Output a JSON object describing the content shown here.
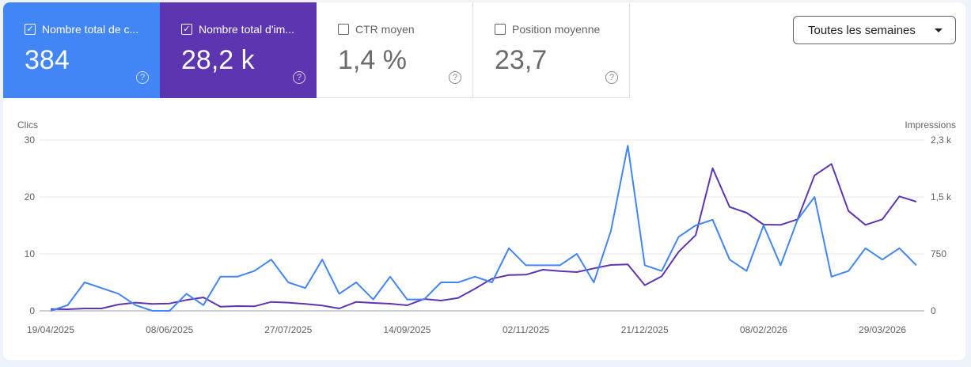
{
  "metrics": [
    {
      "label": "Nombre total de c...",
      "value": "384",
      "checked": true,
      "color": "#4285f4"
    },
    {
      "label": "Nombre total d'im...",
      "value": "28,2 k",
      "checked": true,
      "color": "#5e35b1"
    },
    {
      "label": "CTR moyen",
      "value": "1,4 %",
      "checked": false
    },
    {
      "label": "Position moyenne",
      "value": "23,7",
      "checked": false
    }
  ],
  "period_dropdown": {
    "selected": "Toutes les semaines"
  },
  "chart_data": {
    "type": "line",
    "left_axis_label": "Clics",
    "right_axis_label": "Impressions",
    "left_ticks": [
      "30",
      "20",
      "10",
      "0"
    ],
    "right_ticks": [
      "2,3 k",
      "1,5 k",
      "750",
      "0"
    ],
    "left_range": [
      0,
      30
    ],
    "right_range": [
      0,
      2250
    ],
    "x_ticks": [
      "19/04/2025",
      "08/06/2025",
      "27/07/2025",
      "14/09/2025",
      "02/11/2025",
      "21/12/2025",
      "08/02/2026",
      "29/03/2026"
    ],
    "grid": true,
    "series": [
      {
        "name": "Clics",
        "axis": "left",
        "color": "#4285f4",
        "values": [
          0,
          1,
          5,
          4,
          3,
          1,
          0,
          0,
          3,
          1,
          6,
          6,
          7,
          9,
          5,
          4,
          9,
          3,
          5,
          2,
          6,
          2,
          2,
          5,
          5,
          6,
          5,
          11,
          8,
          8,
          8,
          10,
          5,
          14,
          29,
          8,
          7,
          13,
          15,
          16,
          9,
          7,
          15,
          8,
          16,
          20,
          6,
          7,
          11,
          9,
          11,
          8
        ]
      },
      {
        "name": "Impressions",
        "axis": "right",
        "color": "#5e35b1",
        "values": [
          24,
          21,
          31,
          31,
          83,
          108,
          91,
          97,
          143,
          177,
          55,
          62,
          59,
          118,
          108,
          91,
          70,
          31,
          118,
          104,
          94,
          73,
          156,
          135,
          170,
          292,
          424,
          472,
          476,
          542,
          524,
          510,
          559,
          604,
          611,
          337,
          455,
          778,
          997,
          1878,
          1368,
          1292,
          1135,
          1132,
          1205,
          1784,
          1934,
          1316,
          1132,
          1205,
          1507,
          1437
        ]
      }
    ]
  }
}
